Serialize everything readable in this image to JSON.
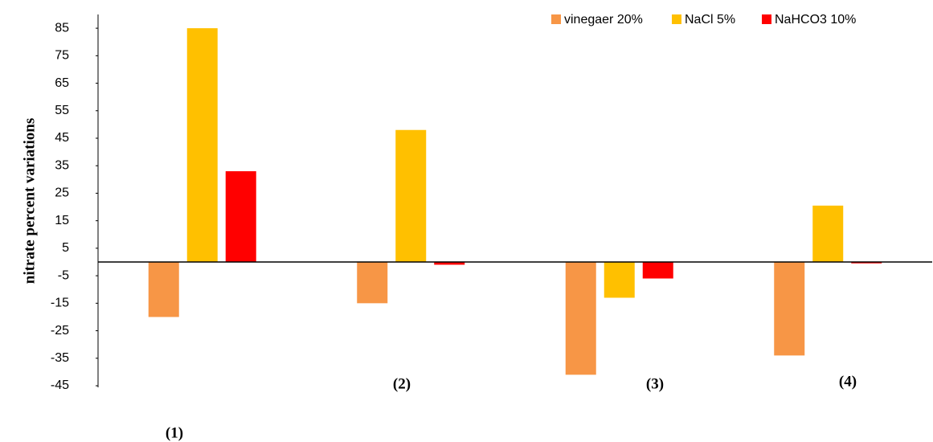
{
  "chart_data": {
    "type": "bar",
    "y_label": "nitrate percent variations",
    "categories": [
      "(1)",
      "(2)",
      "(3)",
      "(4)"
    ],
    "series": [
      {
        "name": "vinegaer 20%",
        "color": "#f79646",
        "values": [
          -20,
          -15,
          -41,
          -34
        ]
      },
      {
        "name": "NaCl 5%",
        "color": "#ffc000",
        "values": [
          85,
          48,
          -13,
          20.5
        ]
      },
      {
        "name": "NaHCO3 10%",
        "color": "#ff0000",
        "values": [
          33,
          -1,
          -6,
          -0.5
        ]
      }
    ],
    "ylim": [
      -45,
      90
    ],
    "yticks": [
      -45,
      -35,
      -25,
      -15,
      -5,
      5,
      15,
      25,
      35,
      45,
      55,
      65,
      75,
      85
    ],
    "legend": "top-right"
  }
}
